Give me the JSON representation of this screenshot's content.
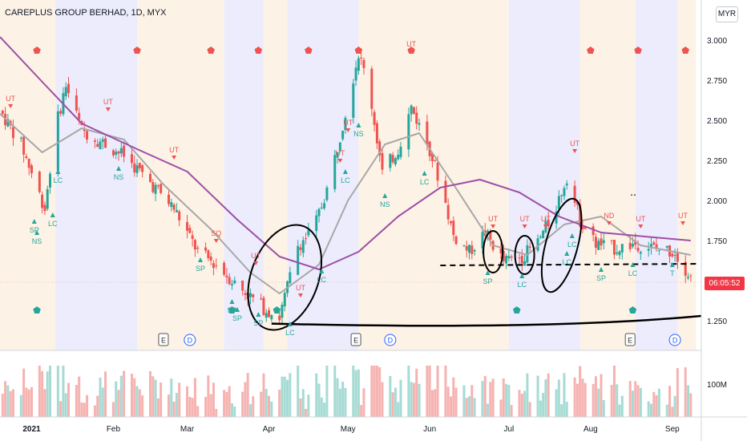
{
  "header": {
    "title": "CAREPLUS GROUP BERHAD, 1D, MYX",
    "currency": "MYR",
    "countdown": "06:05:52"
  },
  "colors": {
    "up": "#26a69a",
    "down": "#ef5350",
    "ma_fast": "#a7a7a7",
    "ma_slow": "#9c4fa6",
    "band_blue": "#ececfd",
    "band_orange": "#fdf2e6",
    "label_red": "#ef5350",
    "label_green": "#26a69a"
  },
  "chart_data": {
    "type": "candlestick",
    "title": "CAREPLUS GROUP BERHAD, 1D, MYX",
    "y_axis": {
      "ylim": [
        1.1,
        3.1
      ],
      "ticks": [
        "1.250",
        "1.500",
        "1.750",
        "2.000",
        "2.250",
        "2.500",
        "2.750",
        "3.000"
      ]
    },
    "x_axis": {
      "ticks": [
        "2021",
        "Feb",
        "Mar",
        "Apr",
        "May",
        "Jun",
        "Jul",
        "Aug",
        "Sep"
      ]
    },
    "volume_axis": {
      "ticks": [
        "100M"
      ]
    },
    "price_path": [
      [
        "2020-12-20",
        2.56
      ],
      [
        "2020-12-28",
        2.35
      ],
      [
        "2021-01-06",
        1.95
      ],
      [
        "2021-01-10",
        2.45
      ],
      [
        "2021-01-14",
        2.72
      ],
      [
        "2021-01-20",
        2.44
      ],
      [
        "2021-01-28",
        2.36
      ],
      [
        "2021-02-05",
        2.28
      ],
      [
        "2021-02-14",
        2.13
      ],
      [
        "2021-02-24",
        1.95
      ],
      [
        "2021-03-05",
        1.68
      ],
      [
        "2021-03-12",
        1.6
      ],
      [
        "2021-03-20",
        1.47
      ],
      [
        "2021-03-30",
        1.33
      ],
      [
        "2021-04-05",
        1.27
      ],
      [
        "2021-04-12",
        1.72
      ],
      [
        "2021-04-18",
        1.82
      ],
      [
        "2021-04-24",
        2.12
      ],
      [
        "2021-04-30",
        2.55
      ],
      [
        "2021-05-05",
        2.92
      ],
      [
        "2021-05-09",
        2.7
      ],
      [
        "2021-05-14",
        2.17
      ],
      [
        "2021-05-20",
        2.32
      ],
      [
        "2021-05-25",
        2.58
      ],
      [
        "2021-06-01",
        2.32
      ],
      [
        "2021-06-06",
        2.05
      ],
      [
        "2021-06-10",
        1.78
      ],
      [
        "2021-06-16",
        1.68
      ],
      [
        "2021-06-22",
        1.8
      ],
      [
        "2021-06-29",
        1.62
      ],
      [
        "2021-07-06",
        1.65
      ],
      [
        "2021-07-12",
        1.74
      ],
      [
        "2021-07-18",
        1.92
      ],
      [
        "2021-07-23",
        2.15
      ],
      [
        "2021-07-28",
        1.88
      ],
      [
        "2021-08-03",
        1.73
      ],
      [
        "2021-08-10",
        1.7
      ],
      [
        "2021-08-18",
        1.73
      ],
      [
        "2021-08-26",
        1.7
      ],
      [
        "2021-09-02",
        1.68
      ],
      [
        "2021-09-08",
        1.52
      ]
    ],
    "last_price_marker": 1.49,
    "series": [
      {
        "values": [
          [
            "2020-12-20",
            2.54
          ],
          [
            "2021-01-05",
            2.3
          ],
          [
            "2021-01-20",
            2.45
          ],
          [
            "2021-02-05",
            2.38
          ],
          [
            "2021-02-20",
            2.1
          ],
          [
            "2021-03-10",
            1.82
          ],
          [
            "2021-03-25",
            1.55
          ],
          [
            "2021-04-05",
            1.42
          ],
          [
            "2021-04-20",
            1.6
          ],
          [
            "2021-05-01",
            2.0
          ],
          [
            "2021-05-15",
            2.35
          ],
          [
            "2021-05-28",
            2.42
          ],
          [
            "2021-06-12",
            2.05
          ],
          [
            "2021-06-25",
            1.72
          ],
          [
            "2021-07-08",
            1.66
          ],
          [
            "2021-07-22",
            1.85
          ],
          [
            "2021-08-05",
            1.9
          ],
          [
            "2021-08-20",
            1.72
          ],
          [
            "2021-09-08",
            1.66
          ]
        ]
      },
      {
        "values": [
          [
            "2020-12-20",
            3.02
          ],
          [
            "2021-01-05",
            2.74
          ],
          [
            "2021-01-20",
            2.48
          ],
          [
            "2021-02-10",
            2.32
          ],
          [
            "2021-03-01",
            2.18
          ],
          [
            "2021-03-20",
            1.88
          ],
          [
            "2021-04-05",
            1.65
          ],
          [
            "2021-04-20",
            1.57
          ],
          [
            "2021-05-05",
            1.68
          ],
          [
            "2021-05-20",
            1.9
          ],
          [
            "2021-06-05",
            2.08
          ],
          [
            "2021-06-20",
            2.13
          ],
          [
            "2021-07-05",
            2.05
          ],
          [
            "2021-07-20",
            1.9
          ],
          [
            "2021-08-05",
            1.8
          ],
          [
            "2021-08-25",
            1.77
          ],
          [
            "2021-09-08",
            1.75
          ]
        ]
      }
    ],
    "background_bands": [
      {
        "from": "2020-12-20",
        "to": "2021-01-10",
        "color": "orange"
      },
      {
        "from": "2021-01-10",
        "to": "2021-02-10",
        "color": "blue"
      },
      {
        "from": "2021-02-10",
        "to": "2021-03-15",
        "color": "orange"
      },
      {
        "from": "2021-03-15",
        "to": "2021-03-30",
        "color": "blue"
      },
      {
        "from": "2021-03-30",
        "to": "2021-04-08",
        "color": "orange"
      },
      {
        "from": "2021-04-08",
        "to": "2021-05-05",
        "color": "blue"
      },
      {
        "from": "2021-05-05",
        "to": "2021-07-01",
        "color": "orange"
      },
      {
        "from": "2021-07-01",
        "to": "2021-07-28",
        "color": "blue"
      },
      {
        "from": "2021-07-28",
        "to": "2021-08-18",
        "color": "orange"
      },
      {
        "from": "2021-08-18",
        "to": "2021-09-03",
        "color": "blue"
      },
      {
        "from": "2021-09-03",
        "to": "2021-09-10",
        "color": "orange"
      }
    ],
    "signal_labels": [
      {
        "text": "UT",
        "date": "2020-12-24",
        "price": 2.62,
        "color": "red",
        "arrow": "down"
      },
      {
        "text": "UT",
        "date": "2021-01-30",
        "price": 2.6,
        "color": "red",
        "arrow": "down"
      },
      {
        "text": "UT",
        "date": "2021-02-24",
        "price": 2.3,
        "color": "red",
        "arrow": "down"
      },
      {
        "text": "SQ",
        "date": "2021-03-12",
        "price": 1.78,
        "color": "red",
        "arrow": "down"
      },
      {
        "text": "UT",
        "date": "2021-03-27",
        "price": 1.64,
        "color": "red",
        "arrow": "down"
      },
      {
        "text": "UT",
        "date": "2021-04-13",
        "price": 1.44,
        "color": "red",
        "arrow": "down"
      },
      {
        "text": "UT",
        "date": "2021-04-28",
        "price": 2.28,
        "color": "red",
        "arrow": "down"
      },
      {
        "text": "UT",
        "date": "2021-05-01",
        "price": 2.47,
        "color": "red",
        "arrow": "down"
      },
      {
        "text": "UT",
        "date": "2021-05-25",
        "price": 2.96,
        "color": "red",
        "arrow": "down"
      },
      {
        "text": "UT",
        "date": "2021-06-25",
        "price": 1.87,
        "color": "red",
        "arrow": "down"
      },
      {
        "text": "UT",
        "date": "2021-07-07",
        "price": 1.87,
        "color": "red",
        "arrow": "down"
      },
      {
        "text": "UT",
        "date": "2021-07-15",
        "price": 1.87,
        "color": "red",
        "arrow": "down"
      },
      {
        "text": "UT",
        "date": "2021-07-26",
        "price": 2.34,
        "color": "red",
        "arrow": "down"
      },
      {
        "text": "ND",
        "date": "2021-08-08",
        "price": 1.89,
        "color": "red",
        "arrow": "down"
      },
      {
        "text": "UT",
        "date": "2021-08-20",
        "price": 1.87,
        "color": "red",
        "arrow": "down"
      },
      {
        "text": "UT",
        "date": "2021-09-05",
        "price": 1.89,
        "color": "red",
        "arrow": "down"
      },
      {
        "text": "SP",
        "date": "2021-01-02",
        "price": 1.8,
        "color": "green",
        "arrow": "up"
      },
      {
        "text": "NS",
        "date": "2021-01-03",
        "price": 1.73,
        "color": "green",
        "arrow": "up"
      },
      {
        "text": "LC",
        "date": "2021-01-09",
        "price": 1.84,
        "color": "green",
        "arrow": "up"
      },
      {
        "text": "LC",
        "date": "2021-01-11",
        "price": 2.11,
        "color": "green",
        "arrow": "up"
      },
      {
        "text": "NS",
        "date": "2021-02-03",
        "price": 2.13,
        "color": "green",
        "arrow": "up"
      },
      {
        "text": "SP",
        "date": "2021-03-06",
        "price": 1.56,
        "color": "green",
        "arrow": "up"
      },
      {
        "text": "SP",
        "date": "2021-03-18",
        "price": 1.3,
        "color": "green",
        "arrow": "up"
      },
      {
        "text": "SP",
        "date": "2021-03-20",
        "price": 1.25,
        "color": "green",
        "arrow": "up"
      },
      {
        "text": "SP",
        "date": "2021-03-28",
        "price": 1.22,
        "color": "green",
        "arrow": "up"
      },
      {
        "text": "LC",
        "date": "2021-04-09",
        "price": 1.16,
        "color": "green",
        "arrow": "up"
      },
      {
        "text": "LC",
        "date": "2021-04-21",
        "price": 1.49,
        "color": "green",
        "arrow": "up"
      },
      {
        "text": "LC",
        "date": "2021-04-30",
        "price": 2.11,
        "color": "green",
        "arrow": "up"
      },
      {
        "text": "NS",
        "date": "2021-05-05",
        "price": 2.4,
        "color": "green",
        "arrow": "up"
      },
      {
        "text": "NS",
        "date": "2021-05-15",
        "price": 1.96,
        "color": "green",
        "arrow": "up"
      },
      {
        "text": "LC",
        "date": "2021-05-30",
        "price": 2.1,
        "color": "green",
        "arrow": "up"
      },
      {
        "text": "SP",
        "date": "2021-06-23",
        "price": 1.48,
        "color": "green",
        "arrow": "up"
      },
      {
        "text": "LC",
        "date": "2021-07-06",
        "price": 1.46,
        "color": "green",
        "arrow": "up"
      },
      {
        "text": "LC",
        "date": "2021-07-23",
        "price": 1.6,
        "color": "green",
        "arrow": "up"
      },
      {
        "text": "LC",
        "date": "2021-07-25",
        "price": 1.71,
        "color": "green",
        "arrow": "up"
      },
      {
        "text": "SP",
        "date": "2021-08-05",
        "price": 1.5,
        "color": "green",
        "arrow": "up"
      },
      {
        "text": "LC",
        "date": "2021-08-17",
        "price": 1.53,
        "color": "green",
        "arrow": "up"
      },
      {
        "text": "T",
        "date": "2021-09-01",
        "price": 1.53,
        "color": "green",
        "arrow": "up"
      }
    ],
    "pentagon_markers": [
      {
        "date": "2021-01-03",
        "color": "red"
      },
      {
        "date": "2021-02-10",
        "color": "red"
      },
      {
        "date": "2021-03-10",
        "color": "red"
      },
      {
        "date": "2021-03-28",
        "color": "red"
      },
      {
        "date": "2021-04-16",
        "color": "red"
      },
      {
        "date": "2021-05-05",
        "color": "red"
      },
      {
        "date": "2021-05-25",
        "color": "red"
      },
      {
        "date": "2021-08-01",
        "color": "red"
      },
      {
        "date": "2021-08-19",
        "color": "red"
      },
      {
        "date": "2021-09-06",
        "color": "red"
      },
      {
        "date": "2021-01-03",
        "color": "green",
        "low": true
      },
      {
        "date": "2021-03-18",
        "color": "green",
        "low": true
      },
      {
        "date": "2021-04-04",
        "color": "green",
        "low": true
      },
      {
        "date": "2021-07-04",
        "color": "green",
        "low": true
      },
      {
        "date": "2021-08-17",
        "color": "green",
        "low": true
      }
    ],
    "event_markers": [
      {
        "text": "E",
        "date": "2021-02-20"
      },
      {
        "text": "D",
        "date": "2021-03-02"
      },
      {
        "text": "E",
        "date": "2021-05-04"
      },
      {
        "text": "D",
        "date": "2021-05-17"
      },
      {
        "text": "E",
        "date": "2021-08-16"
      },
      {
        "text": "D",
        "date": "2021-09-02"
      }
    ],
    "drawings": {
      "dashed_line": {
        "from": [
          "2021-06-05",
          1.595
        ],
        "to": [
          "2021-09-11",
          1.605
        ]
      },
      "support_curve": {
        "from": [
          "2021-04-02",
          1.232
        ],
        "mid": [
          "2021-07-15",
          1.22
        ],
        "to": [
          "2021-09-12",
          1.28
        ]
      },
      "dots_text": ".."
    },
    "volume_range_max": 150
  }
}
